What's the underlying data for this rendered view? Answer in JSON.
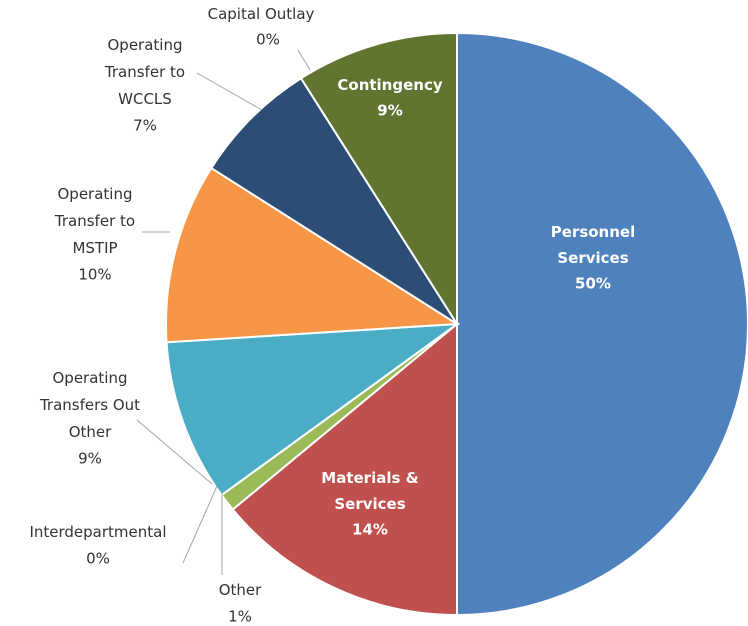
{
  "chart_data": {
    "type": "pie",
    "categories": [
      "Personnel Services",
      "Materials & Services",
      "Other",
      "Interdepartmental",
      "Operating Transfers Out Other",
      "Operating Transfer to MSTIP",
      "Operating Transfer to WCCLS",
      "Capital Outlay",
      "Contingency"
    ],
    "values": [
      50,
      14,
      1,
      0,
      9,
      10,
      7,
      0,
      9
    ],
    "value_labels": [
      "50%",
      "14%",
      "1%",
      "0%",
      "9%",
      "10%",
      "7%",
      "0%",
      "9%"
    ],
    "colors": [
      "#4f81bd",
      "#c0504d",
      "#9bbb59",
      "#8064a2",
      "#4bacc6",
      "#f79646",
      "#2c4d75",
      "#772c2a",
      "#5f7530"
    ]
  }
}
